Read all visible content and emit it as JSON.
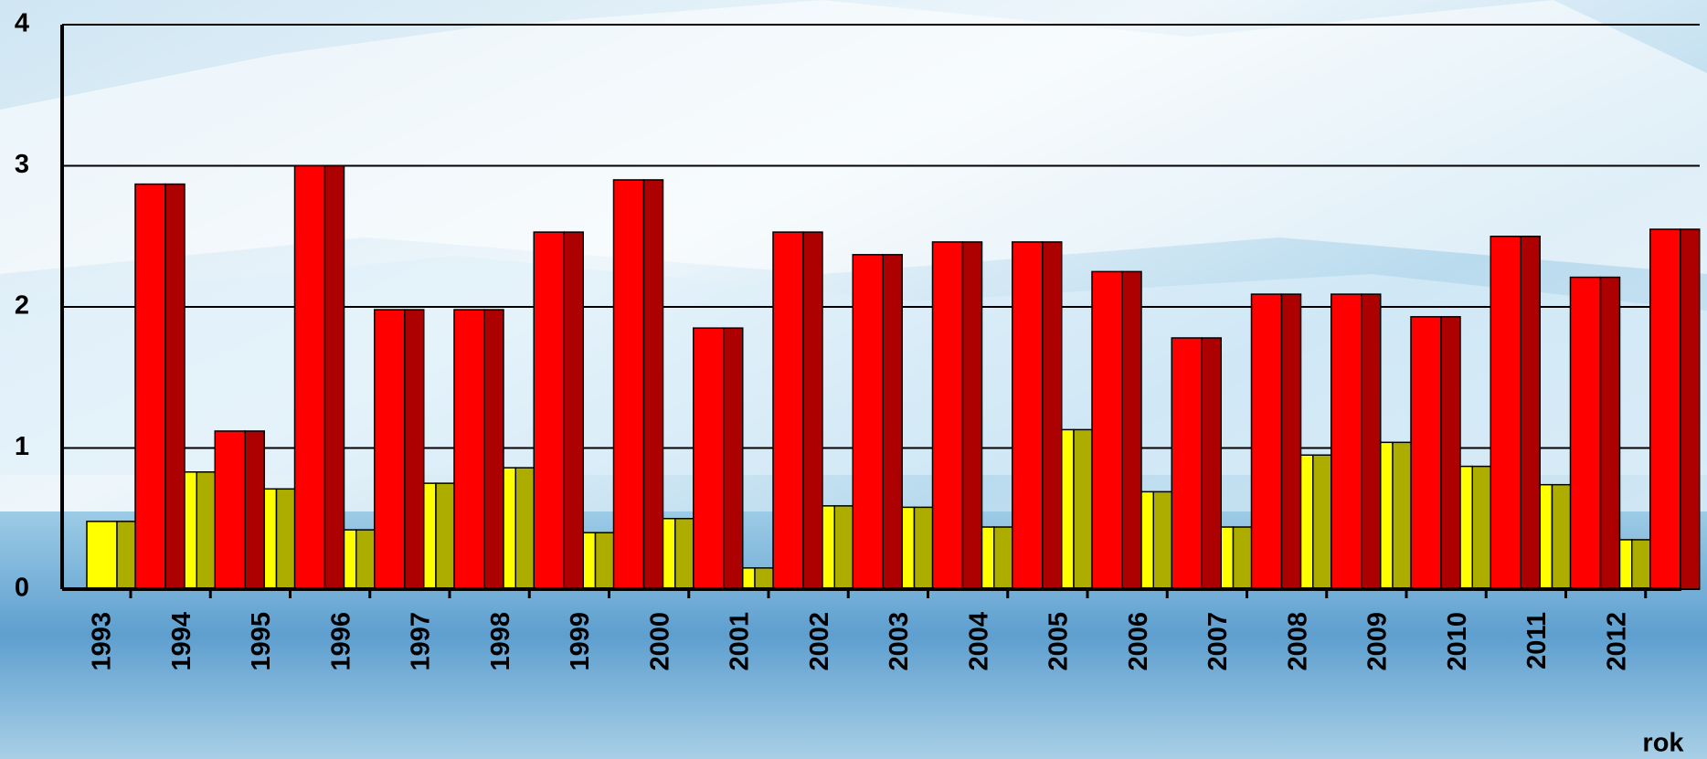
{
  "chart_data": {
    "type": "bar",
    "x_label": "rok",
    "categories": [
      "1993",
      "1994",
      "1995",
      "1996",
      "1997",
      "1998",
      "1999",
      "2000",
      "2001",
      "2002",
      "2003",
      "2004",
      "2005",
      "2006",
      "2007",
      "2008",
      "2009",
      "2010",
      "2011",
      "2012"
    ],
    "series": [
      {
        "color": "#ffff00",
        "values": [
          0.48,
          0.83,
          0.71,
          0.42,
          0.75,
          0.86,
          0.4,
          0.5,
          0.15,
          0.59,
          0.58,
          0.44,
          1.13,
          0.69,
          0.44,
          0.95,
          1.04,
          0.87,
          0.74,
          0.35
        ]
      },
      {
        "color": "#ff0000",
        "values": [
          2.87,
          1.12,
          3.0,
          1.98,
          1.98,
          2.53,
          2.9,
          1.85,
          2.53,
          2.37,
          2.46,
          2.46,
          2.25,
          1.78,
          2.09,
          2.09,
          1.93,
          2.5,
          2.21,
          2.55
        ]
      }
    ],
    "ylim": [
      0,
      4
    ],
    "yticks": [
      0,
      1,
      2,
      3,
      4
    ],
    "grid": true
  }
}
